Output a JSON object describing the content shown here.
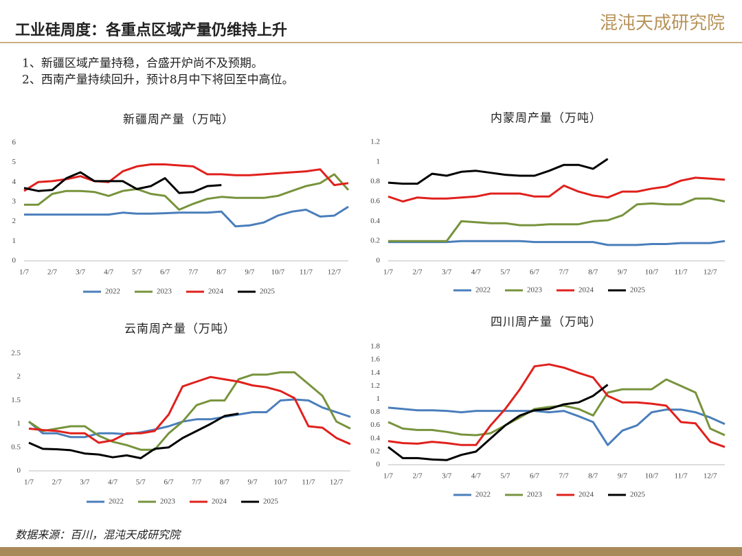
{
  "header": {
    "title": "工业硅周度：各重点区域产量仍维持上升",
    "logo": "混沌天成研究院"
  },
  "bullets": [
    "1、新疆区域产量持稳，合盛开炉尚不及预期。",
    "2、西南产量持续回升，预计8月中下将回至中高位。"
  ],
  "source": "数据来源：百川，混沌天成研究院",
  "chart_data": [
    {
      "type": "line",
      "title": "新疆周产量（万吨）",
      "categories": [
        "1/7",
        null,
        "2/7",
        null,
        "3/7",
        null,
        "4/7",
        null,
        "5/7",
        null,
        "6/7",
        null,
        "7/7",
        null,
        "8/7",
        null,
        "9/7",
        null,
        "10/7",
        null,
        "11/7",
        null,
        "12/7",
        null
      ],
      "ylim": [
        0,
        6
      ],
      "yticks": [
        0,
        1,
        2,
        3,
        4,
        5,
        6
      ],
      "series": [
        {
          "name": "2022",
          "color": "#4a7ebb",
          "values": [
            2.35,
            2.35,
            2.35,
            2.35,
            2.35,
            2.35,
            2.35,
            2.45,
            2.4,
            2.4,
            2.42,
            2.45,
            2.45,
            2.45,
            2.5,
            1.75,
            1.8,
            1.95,
            2.3,
            2.5,
            2.6,
            2.25,
            2.3,
            2.75
          ]
        },
        {
          "name": "2023",
          "color": "#77933c",
          "values": [
            2.85,
            2.85,
            3.4,
            3.55,
            3.55,
            3.5,
            3.3,
            3.55,
            3.65,
            3.4,
            3.3,
            2.6,
            2.9,
            3.15,
            3.25,
            3.2,
            3.2,
            3.2,
            3.3,
            3.55,
            3.8,
            3.95,
            4.4,
            3.6
          ]
        },
        {
          "name": "2024",
          "color": "#e0201c",
          "values": [
            3.55,
            4.0,
            4.05,
            4.15,
            4.3,
            4.05,
            4.0,
            4.55,
            4.8,
            4.9,
            4.9,
            4.85,
            4.8,
            4.4,
            4.4,
            4.35,
            4.35,
            4.4,
            4.45,
            4.5,
            4.55,
            4.65,
            3.85,
            3.95
          ]
        },
        {
          "name": "2025",
          "color": "#000000",
          "values": [
            3.7,
            3.55,
            3.6,
            4.2,
            4.5,
            4.05,
            4.05,
            4.05,
            3.65,
            3.8,
            4.2,
            3.45,
            3.5,
            3.8,
            3.85,
            null,
            null,
            null,
            null,
            null,
            null,
            null,
            null,
            null
          ]
        }
      ]
    },
    {
      "type": "line",
      "title": "内蒙周产量（万吨）",
      "categories": [
        "1/7",
        null,
        "2/7",
        null,
        "3/7",
        null,
        "4/7",
        null,
        "5/7",
        null,
        "6/7",
        null,
        "7/7",
        null,
        "8/7",
        null,
        "9/7",
        null,
        "10/7",
        null,
        "11/7",
        null,
        "12/7",
        null
      ],
      "ylim": [
        0,
        1.2
      ],
      "yticks": [
        0,
        0.2,
        0.4,
        0.6,
        0.8,
        1,
        1.2
      ],
      "series": [
        {
          "name": "2022",
          "color": "#4a7ebb",
          "values": [
            0.19,
            0.19,
            0.19,
            0.19,
            0.19,
            0.2,
            0.2,
            0.2,
            0.2,
            0.2,
            0.19,
            0.19,
            0.19,
            0.19,
            0.19,
            0.16,
            0.16,
            0.16,
            0.17,
            0.17,
            0.18,
            0.18,
            0.18,
            0.2
          ]
        },
        {
          "name": "2023",
          "color": "#77933c",
          "values": [
            0.2,
            0.2,
            0.2,
            0.2,
            0.2,
            0.4,
            0.39,
            0.38,
            0.38,
            0.36,
            0.36,
            0.37,
            0.37,
            0.37,
            0.4,
            0.41,
            0.46,
            0.57,
            0.58,
            0.57,
            0.57,
            0.63,
            0.63,
            0.6
          ]
        },
        {
          "name": "2024",
          "color": "#e0201c",
          "values": [
            0.65,
            0.6,
            0.64,
            0.63,
            0.63,
            0.64,
            0.65,
            0.68,
            0.68,
            0.68,
            0.65,
            0.65,
            0.76,
            0.7,
            0.66,
            0.64,
            0.7,
            0.7,
            0.73,
            0.75,
            0.81,
            0.84,
            0.83,
            0.82
          ]
        },
        {
          "name": "2025",
          "color": "#000000",
          "values": [
            0.79,
            0.78,
            0.78,
            0.88,
            0.86,
            0.9,
            0.91,
            0.89,
            0.87,
            0.86,
            0.86,
            0.91,
            0.97,
            0.97,
            0.93,
            1.03,
            null,
            null,
            null,
            null,
            null,
            null,
            null,
            null
          ]
        }
      ]
    },
    {
      "type": "line",
      "title": "云南周产量（万吨）",
      "categories": [
        "1/7",
        null,
        "2/7",
        null,
        "3/7",
        null,
        "4/7",
        null,
        "5/7",
        null,
        "6/7",
        null,
        "7/7",
        null,
        "8/7",
        null,
        "9/7",
        null,
        "10/7",
        null,
        "11/7",
        null,
        "12/7",
        null
      ],
      "ylim": [
        0,
        2.5
      ],
      "yticks": [
        0,
        0.5,
        1,
        1.5,
        2,
        2.5
      ],
      "series": [
        {
          "name": "2022",
          "color": "#4a7ebb",
          "values": [
            1.05,
            0.8,
            0.8,
            0.72,
            0.72,
            0.8,
            0.8,
            0.78,
            0.82,
            0.88,
            0.95,
            1.05,
            1.1,
            1.1,
            1.15,
            1.2,
            1.25,
            1.25,
            1.5,
            1.52,
            1.5,
            1.35,
            1.25,
            1.15
          ]
        },
        {
          "name": "2023",
          "color": "#77933c",
          "values": [
            1.05,
            0.85,
            0.9,
            0.95,
            0.95,
            0.75,
            0.62,
            0.55,
            0.45,
            0.45,
            0.8,
            1.05,
            1.4,
            1.5,
            1.5,
            1.95,
            2.05,
            2.05,
            2.1,
            2.1,
            1.85,
            1.6,
            1.05,
            0.9
          ]
        },
        {
          "name": "2024",
          "color": "#e0201c",
          "values": [
            0.9,
            0.87,
            0.85,
            0.8,
            0.8,
            0.6,
            0.65,
            0.8,
            0.8,
            0.85,
            1.2,
            1.8,
            1.9,
            2.0,
            1.95,
            1.9,
            1.82,
            1.78,
            1.7,
            1.55,
            0.95,
            0.92,
            0.7,
            0.57
          ]
        },
        {
          "name": "2025",
          "color": "#000000",
          "values": [
            0.6,
            0.47,
            0.46,
            0.44,
            0.37,
            0.35,
            0.29,
            0.33,
            0.27,
            0.47,
            0.5,
            0.7,
            0.85,
            1.0,
            1.17,
            1.22,
            null,
            null,
            null,
            null,
            null,
            null,
            null,
            null
          ]
        }
      ]
    },
    {
      "type": "line",
      "title": "四川周产量（万吨）",
      "categories": [
        "1/7",
        null,
        "2/7",
        null,
        "3/7",
        null,
        "4/7",
        null,
        "5/7",
        null,
        "6/7",
        null,
        "7/7",
        null,
        "8/7",
        null,
        "9/7",
        null,
        "10/7",
        null,
        "11/7",
        null,
        "12/7",
        null
      ],
      "ylim": [
        0,
        1.8
      ],
      "yticks": [
        0,
        0.2,
        0.4,
        0.6,
        0.8,
        1,
        1.2,
        1.4,
        1.6,
        1.8
      ],
      "series": [
        {
          "name": "2022",
          "color": "#4a7ebb",
          "values": [
            0.87,
            0.85,
            0.83,
            0.83,
            0.82,
            0.8,
            0.82,
            0.82,
            0.82,
            0.82,
            0.82,
            0.8,
            0.82,
            0.74,
            0.65,
            0.3,
            0.52,
            0.6,
            0.8,
            0.84,
            0.84,
            0.8,
            0.72,
            0.62
          ]
        },
        {
          "name": "2023",
          "color": "#77933c",
          "values": [
            0.65,
            0.55,
            0.53,
            0.53,
            0.5,
            0.46,
            0.45,
            0.48,
            0.6,
            0.72,
            0.85,
            0.88,
            0.9,
            0.85,
            0.75,
            1.1,
            1.15,
            1.15,
            1.15,
            1.3,
            1.2,
            1.1,
            0.55,
            0.45
          ]
        },
        {
          "name": "2024",
          "color": "#e0201c",
          "values": [
            0.36,
            0.33,
            0.32,
            0.35,
            0.33,
            0.3,
            0.3,
            0.6,
            0.85,
            1.15,
            1.5,
            1.53,
            1.48,
            1.4,
            1.33,
            1.05,
            0.95,
            0.95,
            0.93,
            0.9,
            0.65,
            0.63,
            0.35,
            0.27
          ]
        },
        {
          "name": "2025",
          "color": "#000000",
          "values": [
            0.27,
            0.1,
            0.1,
            0.08,
            0.07,
            0.15,
            0.2,
            0.4,
            0.6,
            0.75,
            0.83,
            0.85,
            0.92,
            0.95,
            1.05,
            1.22,
            null,
            null,
            null,
            null,
            null,
            null,
            null,
            null
          ]
        }
      ]
    }
  ]
}
